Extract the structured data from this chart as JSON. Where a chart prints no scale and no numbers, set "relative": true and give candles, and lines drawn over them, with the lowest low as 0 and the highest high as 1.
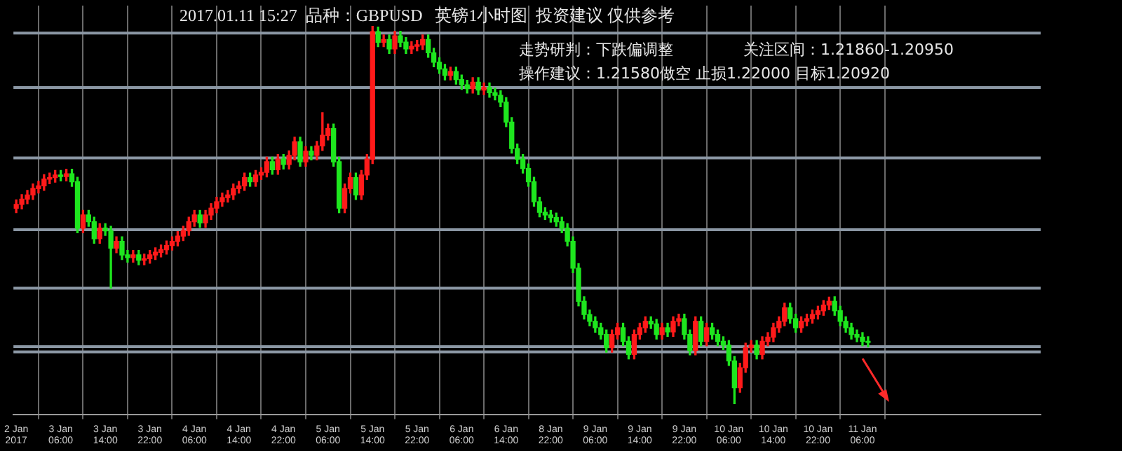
{
  "chart_data": {
    "type": "candlestick",
    "title": "2017.01.11 15:27  品种：GBPUSD   英镑1小时图  投资建议 仅供参考",
    "annotations": [
      "走势研判：下跌偏调整",
      "关注区间：1.21860-1.20950",
      "操作建议：1.21580做空 止损1.22000 目标1.20920"
    ],
    "relative": true,
    "grid": "x",
    "colors": [
      "#ff1a1a",
      "#ff1a1a",
      "#ff1a1a",
      "#ff1a1a",
      "#ff1a1a",
      "#ff1a1a",
      "#ff1a1a",
      "#ff1a1a",
      "#1ee61e",
      "#ff1a1a",
      "#1ee61e",
      "#1ee61e",
      "#ff1a1a",
      "#1ee61e",
      "#1ee61e",
      "#ff1a1a",
      "#1ee61e",
      "#1ee61e",
      "#ff1a1a",
      "#1ee61e",
      "#1ee61e",
      "#ff1a1a",
      "#1ee61e",
      "#ff1a1a",
      "#ff1a1a",
      "#ff1a1a",
      "#ff1a1a",
      "#ff1a1a",
      "#ff1a1a",
      "#ff1a1a",
      "#ff1a1a",
      "#ff1a1a",
      "#ff1a1a",
      "#1ee61e",
      "#ff1a1a",
      "#ff1a1a",
      "#ff1a1a",
      "#ff1a1a",
      "#ff1a1a",
      "#ff1a1a",
      "#ff1a1a",
      "#ff1a1a",
      "#1ee61e",
      "#ff1a1a",
      "#ff1a1a",
      "#ff1a1a",
      "#1ee61e",
      "#ff1a1a",
      "#1ee61e",
      "#ff1a1a",
      "#ff1a1a",
      "#1ee61e",
      "#ff1a1a",
      "#1ee61e",
      "#ff1a1a",
      "#ff1a1a",
      "#ff1a1a",
      "#1ee61e",
      "#1ee61e",
      "#ff1a1a",
      "#ff1a1a",
      "#1ee61e",
      "#ff1a1a",
      "#ff1a1a",
      "#ff1a1a",
      "#1ee61e",
      "#ff1a1a",
      "#1ee61e",
      "#ff1a1a",
      "#1ee61e",
      "#1ee61e",
      "#ff1a1a",
      "#ff1a1a",
      "#ff1a1a",
      "#1ee61e",
      "#1ee61e",
      "#1ee61e",
      "#1ee61e",
      "#ff1a1a",
      "#1ee61e",
      "#1ee61e",
      "#1ee61e",
      "#ff1a1a",
      "#1ee61e",
      "#ff1a1a",
      "#1ee61e",
      "#1ee61e",
      "#1ee61e",
      "#1ee61e",
      "#1ee61e",
      "#1ee61e",
      "#1ee61e",
      "#1ee61e",
      "#1ee61e",
      "#1ee61e",
      "#1ee61e",
      "#1ee61e",
      "#1ee61e",
      "#1ee61e",
      "#1ee61e",
      "#1ee61e",
      "#1ee61e",
      "#1ee61e",
      "#1ee61e",
      "#1ee61e",
      "#1ee61e",
      "#1ee61e",
      "#ff1a1a",
      "#ff1a1a",
      "#1ee61e",
      "#1ee61e",
      "#ff1a1a",
      "#ff1a1a",
      "#ff1a1a",
      "#1ee61e",
      "#1ee61e",
      "#ff1a1a",
      "#1ee61e",
      "#ff1a1a",
      "#ff1a1a",
      "#1ee61e",
      "#1ee61e",
      "#ff1a1a",
      "#1ee61e",
      "#ff1a1a",
      "#1ee61e",
      "#1ee61e",
      "#1ee61e",
      "#1ee61e",
      "#1ee61e",
      "#ff1a1a",
      "#ff1a1a",
      "#ff1a1a",
      "#1ee61e",
      "#ff1a1a",
      "#ff1a1a",
      "#ff1a1a",
      "#ff1a1a",
      "#ff1a1a",
      "#1ee61e",
      "#1ee61e",
      "#ff1a1a",
      "#ff1a1a",
      "#ff1a1a",
      "#ff1a1a",
      "#ff1a1a",
      "#ff1a1a",
      "#1ee61e",
      "#1ee61e",
      "#1ee61e",
      "#1ee61e",
      "#1ee61e",
      "#1ee61e",
      "#1ee61e"
    ],
    "ref_lines": [
      {
        "axis": "y",
        "value": 0.982,
        "color": "#8a96a3"
      },
      {
        "axis": "y",
        "value": 0.838,
        "color": "#8a96a3"
      },
      {
        "axis": "y",
        "value": 0.651,
        "color": "#8a96a3"
      },
      {
        "axis": "y",
        "value": 0.461,
        "color": "#8a96a3"
      },
      {
        "axis": "y",
        "value": 0.306,
        "color": "#8a96a3"
      },
      {
        "axis": "y",
        "value": 0.151,
        "color": "#8a96a3"
      },
      {
        "axis": "y",
        "value": 0.137,
        "color": "#8a96a3"
      }
    ],
    "categories": [
      "2 Jan 2017",
      null,
      null,
      null,
      null,
      null,
      null,
      null,
      "3 Jan 06:00",
      null,
      null,
      null,
      null,
      null,
      null,
      null,
      "3 Jan 14:00",
      null,
      null,
      null,
      null,
      null,
      null,
      null,
      "3 Jan 22:00",
      null,
      null,
      null,
      null,
      null,
      null,
      null,
      "4 Jan 06:00",
      null,
      null,
      null,
      null,
      null,
      null,
      null,
      "4 Jan 14:00",
      null,
      null,
      null,
      null,
      null,
      null,
      null,
      "4 Jan 22:00",
      null,
      null,
      null,
      null,
      null,
      null,
      null,
      "5 Jan 06:00",
      null,
      null,
      null,
      null,
      null,
      null,
      null,
      "5 Jan 14:00",
      null,
      null,
      null,
      null,
      null,
      null,
      null,
      "5 Jan 22:00",
      null,
      null,
      null,
      null,
      null,
      null,
      null,
      "6 Jan 06:00",
      null,
      null,
      null,
      null,
      null,
      null,
      null,
      "6 Jan 14:00",
      null,
      null,
      null,
      null,
      null,
      null,
      null,
      "8 Jan 22:00",
      null,
      null,
      null,
      null,
      null,
      null,
      null,
      "9 Jan 06:00",
      null,
      null,
      null,
      null,
      null,
      null,
      null,
      "9 Jan 14:00",
      null,
      null,
      null,
      null,
      null,
      null,
      null,
      "9 Jan 22:00",
      null,
      null,
      null,
      null,
      null,
      null,
      null,
      "10 Jan 06:00",
      null,
      null,
      null,
      null,
      null,
      null,
      null,
      "10 Jan 14:00",
      null,
      null,
      null,
      null,
      null,
      null,
      null,
      "10 Jan 22:00",
      null,
      null,
      null,
      null,
      null,
      null,
      null,
      "11 Jan 06:00",
      null
    ],
    "ohlc": [
      [
        0.518,
        0.54,
        0.506,
        0.528
      ],
      [
        0.528,
        0.554,
        0.516,
        0.542
      ],
      [
        0.542,
        0.565,
        0.53,
        0.553
      ],
      [
        0.553,
        0.582,
        0.541,
        0.57
      ],
      [
        0.57,
        0.589,
        0.558,
        0.577
      ],
      [
        0.577,
        0.607,
        0.565,
        0.595
      ],
      [
        0.595,
        0.611,
        0.583,
        0.599
      ],
      [
        0.599,
        0.618,
        0.587,
        0.606
      ],
      [
        0.606,
        0.618,
        0.59,
        0.602
      ],
      [
        0.602,
        0.621,
        0.59,
        0.609
      ],
      [
        0.609,
        0.621,
        0.576,
        0.588
      ],
      [
        0.588,
        0.6,
        0.453,
        0.465
      ],
      [
        0.465,
        0.512,
        0.453,
        0.5
      ],
      [
        0.5,
        0.512,
        0.47,
        0.482
      ],
      [
        0.482,
        0.494,
        0.425,
        0.437
      ],
      [
        0.437,
        0.477,
        0.425,
        0.465
      ],
      [
        0.465,
        0.477,
        0.446,
        0.458
      ],
      [
        0.458,
        0.47,
        0.306,
        0.412
      ],
      [
        0.412,
        0.442,
        0.4,
        0.43
      ],
      [
        0.43,
        0.442,
        0.382,
        0.394
      ],
      [
        0.394,
        0.406,
        0.375,
        0.387
      ],
      [
        0.387,
        0.406,
        0.375,
        0.394
      ],
      [
        0.394,
        0.406,
        0.368,
        0.38
      ],
      [
        0.38,
        0.396,
        0.368,
        0.384
      ],
      [
        0.384,
        0.406,
        0.372,
        0.394
      ],
      [
        0.394,
        0.413,
        0.382,
        0.401
      ],
      [
        0.401,
        0.42,
        0.389,
        0.408
      ],
      [
        0.408,
        0.431,
        0.396,
        0.419
      ],
      [
        0.419,
        0.442,
        0.407,
        0.43
      ],
      [
        0.43,
        0.456,
        0.418,
        0.444
      ],
      [
        0.444,
        0.47,
        0.432,
        0.458
      ],
      [
        0.458,
        0.494,
        0.446,
        0.482
      ],
      [
        0.482,
        0.512,
        0.47,
        0.5
      ],
      [
        0.5,
        0.512,
        0.467,
        0.479
      ],
      [
        0.479,
        0.512,
        0.467,
        0.5
      ],
      [
        0.5,
        0.53,
        0.488,
        0.518
      ],
      [
        0.518,
        0.547,
        0.506,
        0.535
      ],
      [
        0.535,
        0.558,
        0.523,
        0.546
      ],
      [
        0.546,
        0.565,
        0.534,
        0.553
      ],
      [
        0.553,
        0.582,
        0.541,
        0.57
      ],
      [
        0.57,
        0.589,
        0.558,
        0.577
      ],
      [
        0.577,
        0.611,
        0.565,
        0.599
      ],
      [
        0.599,
        0.611,
        0.576,
        0.588
      ],
      [
        0.588,
        0.618,
        0.576,
        0.606
      ],
      [
        0.606,
        0.625,
        0.594,
        0.613
      ],
      [
        0.613,
        0.653,
        0.601,
        0.641
      ],
      [
        0.641,
        0.653,
        0.608,
        0.62
      ],
      [
        0.62,
        0.66,
        0.608,
        0.648
      ],
      [
        0.648,
        0.66,
        0.622,
        0.634
      ],
      [
        0.634,
        0.67,
        0.622,
        0.658
      ],
      [
        0.658,
        0.706,
        0.646,
        0.694
      ],
      [
        0.694,
        0.706,
        0.629,
        0.641
      ],
      [
        0.641,
        0.681,
        0.629,
        0.669
      ],
      [
        0.669,
        0.681,
        0.646,
        0.658
      ],
      [
        0.658,
        0.695,
        0.646,
        0.683
      ],
      [
        0.683,
        0.771,
        0.671,
        0.711
      ],
      [
        0.711,
        0.741,
        0.699,
        0.729
      ],
      [
        0.729,
        0.741,
        0.629,
        0.641
      ],
      [
        0.641,
        0.653,
        0.506,
        0.518
      ],
      [
        0.518,
        0.582,
        0.506,
        0.57
      ],
      [
        0.57,
        0.611,
        0.558,
        0.599
      ],
      [
        0.599,
        0.611,
        0.541,
        0.553
      ],
      [
        0.553,
        0.618,
        0.541,
        0.606
      ],
      [
        0.606,
        0.66,
        0.594,
        0.648
      ],
      [
        0.648,
        1,
        0.636,
        0.986
      ],
      [
        0.986,
        0.998,
        0.946,
        0.958
      ],
      [
        0.958,
        0.977,
        0.946,
        0.965
      ],
      [
        0.965,
        0.977,
        0.928,
        0.94
      ],
      [
        0.94,
        0.987,
        0.928,
        0.975
      ],
      [
        0.975,
        0.987,
        0.946,
        0.958
      ],
      [
        0.958,
        0.97,
        0.928,
        0.94
      ],
      [
        0.94,
        0.959,
        0.928,
        0.947
      ],
      [
        0.947,
        0.963,
        0.935,
        0.951
      ],
      [
        0.951,
        0.977,
        0.939,
        0.965
      ],
      [
        0.965,
        0.977,
        0.918,
        0.93
      ],
      [
        0.93,
        0.942,
        0.893,
        0.905
      ],
      [
        0.905,
        0.917,
        0.875,
        0.887
      ],
      [
        0.887,
        0.899,
        0.858,
        0.87
      ],
      [
        0.87,
        0.892,
        0.858,
        0.88
      ],
      [
        0.88,
        0.892,
        0.847,
        0.859
      ],
      [
        0.859,
        0.871,
        0.833,
        0.845
      ],
      [
        0.845,
        0.857,
        0.823,
        0.835
      ],
      [
        0.835,
        0.864,
        0.823,
        0.852
      ],
      [
        0.852,
        0.864,
        0.819,
        0.831
      ],
      [
        0.831,
        0.85,
        0.819,
        0.838
      ],
      [
        0.838,
        0.85,
        0.812,
        0.824
      ],
      [
        0.824,
        0.836,
        0.805,
        0.817
      ],
      [
        0.817,
        0.829,
        0.787,
        0.799
      ],
      [
        0.799,
        0.811,
        0.734,
        0.746
      ],
      [
        0.746,
        0.758,
        0.664,
        0.676
      ],
      [
        0.676,
        0.688,
        0.636,
        0.648
      ],
      [
        0.648,
        0.66,
        0.611,
        0.623
      ],
      [
        0.623,
        0.635,
        0.576,
        0.588
      ],
      [
        0.588,
        0.6,
        0.523,
        0.535
      ],
      [
        0.535,
        0.547,
        0.495,
        0.507
      ],
      [
        0.507,
        0.519,
        0.488,
        0.5
      ],
      [
        0.5,
        0.512,
        0.481,
        0.493
      ],
      [
        0.493,
        0.505,
        0.47,
        0.482
      ],
      [
        0.482,
        0.494,
        0.453,
        0.465
      ],
      [
        0.465,
        0.477,
        0.418,
        0.43
      ],
      [
        0.43,
        0.442,
        0.347,
        0.359
      ],
      [
        0.359,
        0.371,
        0.259,
        0.271
      ],
      [
        0.271,
        0.283,
        0.224,
        0.236
      ],
      [
        0.236,
        0.248,
        0.206,
        0.218
      ],
      [
        0.218,
        0.23,
        0.189,
        0.201
      ],
      [
        0.201,
        0.213,
        0.171,
        0.183
      ],
      [
        0.183,
        0.195,
        0.136,
        0.148
      ],
      [
        0.148,
        0.195,
        0.136,
        0.183
      ],
      [
        0.183,
        0.213,
        0.171,
        0.201
      ],
      [
        0.201,
        0.213,
        0.153,
        0.165
      ],
      [
        0.165,
        0.177,
        0.118,
        0.13
      ],
      [
        0.13,
        0.195,
        0.118,
        0.183
      ],
      [
        0.183,
        0.213,
        0.171,
        0.201
      ],
      [
        0.201,
        0.23,
        0.189,
        0.218
      ],
      [
        0.218,
        0.23,
        0.199,
        0.211
      ],
      [
        0.211,
        0.223,
        0.171,
        0.183
      ],
      [
        0.183,
        0.213,
        0.171,
        0.201
      ],
      [
        0.201,
        0.213,
        0.178,
        0.19
      ],
      [
        0.19,
        0.23,
        0.178,
        0.218
      ],
      [
        0.218,
        0.237,
        0.206,
        0.225
      ],
      [
        0.225,
        0.237,
        0.171,
        0.183
      ],
      [
        0.183,
        0.195,
        0.129,
        0.141
      ],
      [
        0.141,
        0.23,
        0.129,
        0.218
      ],
      [
        0.218,
        0.23,
        0.153,
        0.165
      ],
      [
        0.165,
        0.213,
        0.153,
        0.201
      ],
      [
        0.201,
        0.213,
        0.171,
        0.183
      ],
      [
        0.183,
        0.195,
        0.153,
        0.165
      ],
      [
        0.165,
        0.177,
        0.143,
        0.155
      ],
      [
        0.155,
        0.167,
        0.101,
        0.113
      ],
      [
        0.113,
        0.125,
        0,
        0.042
      ],
      [
        0.042,
        0.107,
        0.03,
        0.095
      ],
      [
        0.095,
        0.16,
        0.083,
        0.148
      ],
      [
        0.148,
        0.167,
        0.136,
        0.155
      ],
      [
        0.155,
        0.167,
        0.118,
        0.13
      ],
      [
        0.13,
        0.177,
        0.118,
        0.165
      ],
      [
        0.165,
        0.188,
        0.153,
        0.176
      ],
      [
        0.176,
        0.213,
        0.164,
        0.201
      ],
      [
        0.201,
        0.23,
        0.189,
        0.218
      ],
      [
        0.218,
        0.266,
        0.206,
        0.254
      ],
      [
        0.254,
        0.266,
        0.213,
        0.225
      ],
      [
        0.225,
        0.237,
        0.189,
        0.201
      ],
      [
        0.201,
        0.23,
        0.189,
        0.218
      ],
      [
        0.218,
        0.237,
        0.206,
        0.225
      ],
      [
        0.225,
        0.248,
        0.213,
        0.236
      ],
      [
        0.236,
        0.258,
        0.224,
        0.246
      ],
      [
        0.246,
        0.273,
        0.234,
        0.261
      ],
      [
        0.261,
        0.282,
        0.249,
        0.271
      ],
      [
        0.271,
        0.283,
        0.234,
        0.246
      ],
      [
        0.246,
        0.258,
        0.206,
        0.218
      ],
      [
        0.218,
        0.23,
        0.189,
        0.201
      ],
      [
        0.201,
        0.213,
        0.171,
        0.183
      ],
      [
        0.183,
        0.195,
        0.164,
        0.176
      ],
      [
        0.176,
        0.188,
        0.153,
        0.165
      ],
      [
        0.165,
        0.177,
        0.15,
        0.162
      ]
    ]
  }
}
